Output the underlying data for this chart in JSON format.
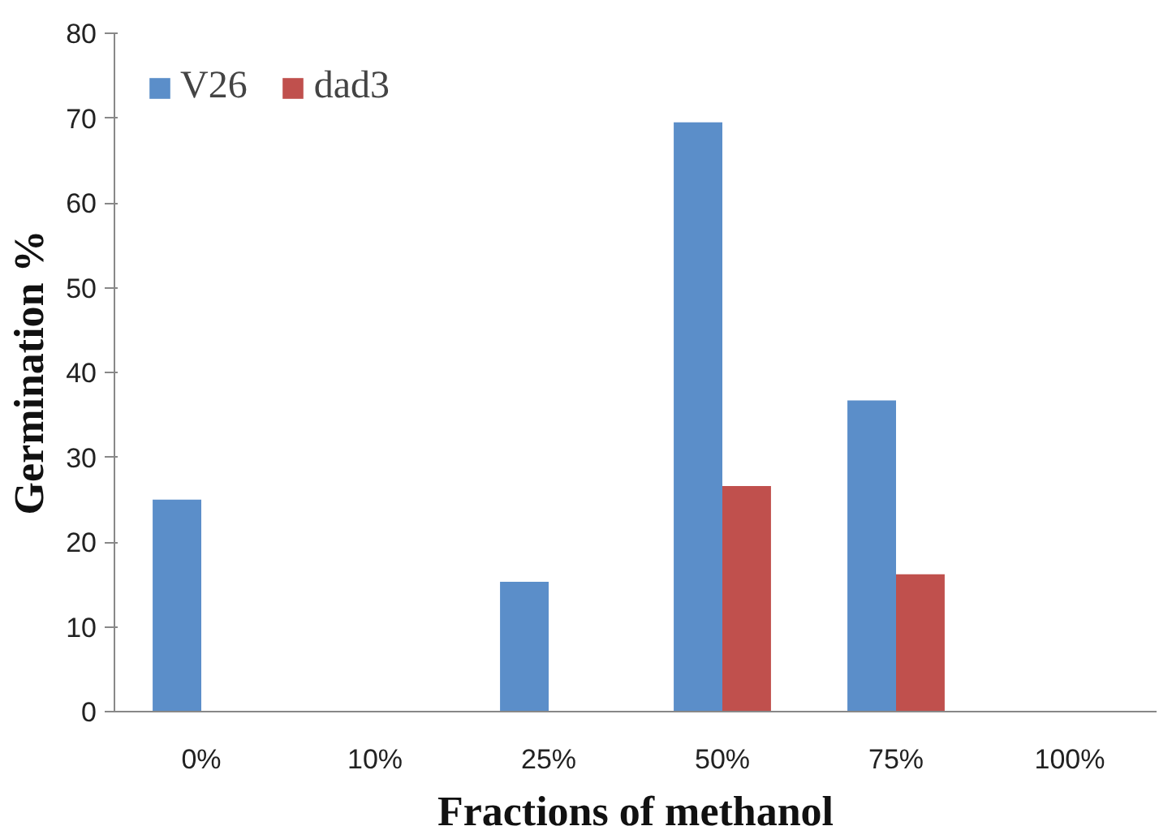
{
  "chart_data": {
    "type": "bar",
    "xlabel": "Fractions of methanol",
    "ylabel": "Germination %",
    "categories": [
      "0%",
      "10%",
      "25%",
      "50%",
      "75%",
      "100%"
    ],
    "series": [
      {
        "name": "V26",
        "color": "#5b8ec9",
        "values": [
          25,
          0,
          15.3,
          69.5,
          36.7,
          0
        ]
      },
      {
        "name": "dad3",
        "color": "#c0504d",
        "values": [
          0,
          0,
          0,
          26.6,
          16.2,
          0
        ]
      }
    ],
    "ylim": [
      0,
      80
    ],
    "yticks": [
      0,
      10,
      20,
      30,
      40,
      50,
      60,
      70,
      80
    ],
    "grid": false,
    "legend": "top left"
  }
}
